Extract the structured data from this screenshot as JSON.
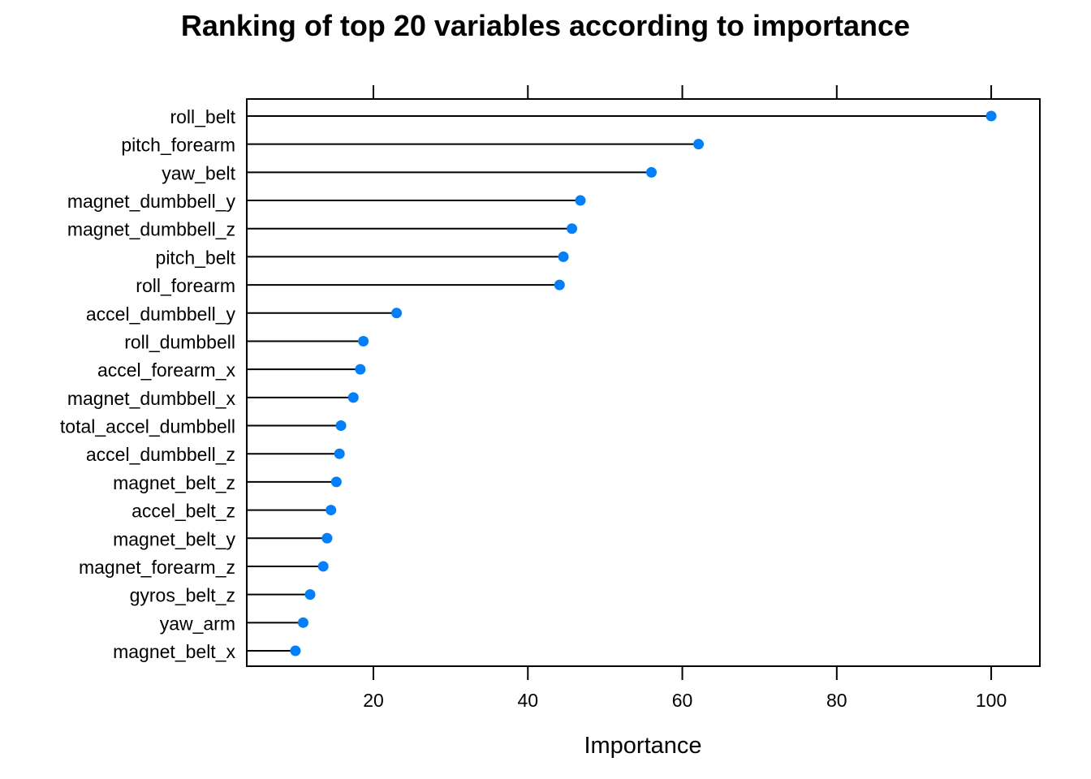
{
  "chart_data": {
    "type": "dotplot",
    "title": "Ranking of top 20 variables according to importance",
    "xlabel": "Importance",
    "ylabel": "",
    "xlim": [
      3.6,
      106.3
    ],
    "xticks": [
      20,
      40,
      60,
      80,
      100
    ],
    "grid": false,
    "legend": "none",
    "categories": [
      "roll_belt",
      "pitch_forearm",
      "yaw_belt",
      "magnet_dumbbell_y",
      "magnet_dumbbell_z",
      "pitch_belt",
      "roll_forearm",
      "accel_dumbbell_y",
      "roll_dumbbell",
      "accel_forearm_x",
      "magnet_dumbbell_x",
      "total_accel_dumbbell",
      "accel_dumbbell_z",
      "magnet_belt_z",
      "accel_belt_z",
      "magnet_belt_y",
      "magnet_forearm_z",
      "gyros_belt_z",
      "yaw_arm",
      "magnet_belt_x"
    ],
    "values": [
      100.0,
      62.1,
      56.0,
      46.8,
      45.7,
      44.6,
      44.1,
      23.0,
      18.7,
      18.3,
      17.4,
      15.8,
      15.6,
      15.2,
      14.5,
      14.0,
      13.5,
      11.8,
      10.9,
      9.9
    ],
    "colors": {
      "point": "#0080ff",
      "line": "#000000",
      "frame": "#000000"
    }
  }
}
